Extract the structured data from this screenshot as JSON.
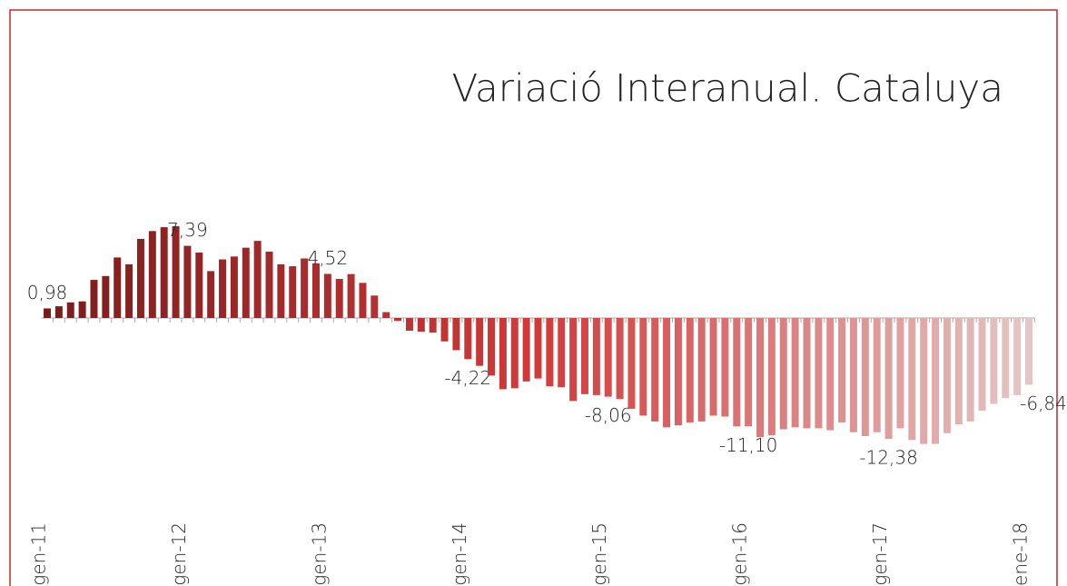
{
  "chart_data": {
    "type": "bar",
    "title": "Variació Interanual. Cataluya",
    "categories": [
      "gen-11",
      null,
      null,
      null,
      null,
      null,
      null,
      null,
      null,
      null,
      null,
      null,
      "gen-12",
      null,
      null,
      null,
      null,
      null,
      null,
      null,
      null,
      null,
      null,
      null,
      "gen-13",
      null,
      null,
      null,
      null,
      null,
      null,
      null,
      null,
      null,
      null,
      null,
      "gen-14",
      null,
      null,
      null,
      null,
      null,
      null,
      null,
      null,
      null,
      null,
      null,
      "gen-15",
      null,
      null,
      null,
      null,
      null,
      null,
      null,
      null,
      null,
      null,
      null,
      "gen-16",
      null,
      null,
      null,
      null,
      null,
      null,
      null,
      null,
      null,
      null,
      null,
      "gen-17",
      null,
      null,
      null,
      null,
      null,
      null,
      null,
      null,
      null,
      null,
      null,
      "ene-18"
    ],
    "values": [
      0.98,
      1.2,
      1.6,
      1.7,
      3.9,
      4.3,
      6.2,
      5.5,
      8.1,
      8.9,
      9.3,
      9.4,
      7.39,
      6.7,
      4.8,
      6.0,
      6.3,
      7.2,
      7.9,
      6.8,
      5.5,
      5.3,
      6.1,
      5.6,
      4.52,
      4.0,
      4.5,
      3.6,
      2.3,
      0.6,
      -0.3,
      -1.3,
      -1.4,
      -1.5,
      -2.4,
      -3.3,
      -4.22,
      -4.9,
      -5.9,
      -7.3,
      -7.2,
      -6.5,
      -6.2,
      -7.0,
      -7.1,
      -8.5,
      -7.8,
      -7.9,
      -8.06,
      -8.3,
      -9.3,
      -10.0,
      -10.6,
      -11.2,
      -11.0,
      -10.7,
      -10.6,
      -10.0,
      -10.1,
      -11.1,
      -11.1,
      -12.2,
      -12.0,
      -11.4,
      -11.2,
      -11.3,
      -11.3,
      -11.5,
      -10.7,
      -11.7,
      -12.1,
      -11.7,
      -12.38,
      -11.3,
      -12.5,
      -12.9,
      -12.9,
      -11.8,
      -10.9,
      -10.6,
      -9.5,
      -8.8,
      -8.2,
      -7.9,
      -6.84
    ],
    "value_labels": [
      "0,98",
      null,
      null,
      null,
      null,
      null,
      null,
      null,
      null,
      null,
      null,
      null,
      "7,39",
      null,
      null,
      null,
      null,
      null,
      null,
      null,
      null,
      null,
      null,
      null,
      "4,52",
      null,
      null,
      null,
      null,
      null,
      null,
      null,
      null,
      null,
      null,
      null,
      "-4,22",
      null,
      null,
      null,
      null,
      null,
      null,
      null,
      null,
      null,
      null,
      null,
      "-8,06",
      null,
      null,
      null,
      null,
      null,
      null,
      null,
      null,
      null,
      null,
      null,
      "-11,10",
      null,
      null,
      null,
      null,
      null,
      null,
      null,
      null,
      null,
      null,
      null,
      "-12,38",
      null,
      null,
      null,
      null,
      null,
      null,
      null,
      null,
      null,
      null,
      null,
      "-6,84"
    ],
    "colors": [
      "#7a1c1c",
      "#d23a3a",
      "#e4c6c6"
    ]
  }
}
